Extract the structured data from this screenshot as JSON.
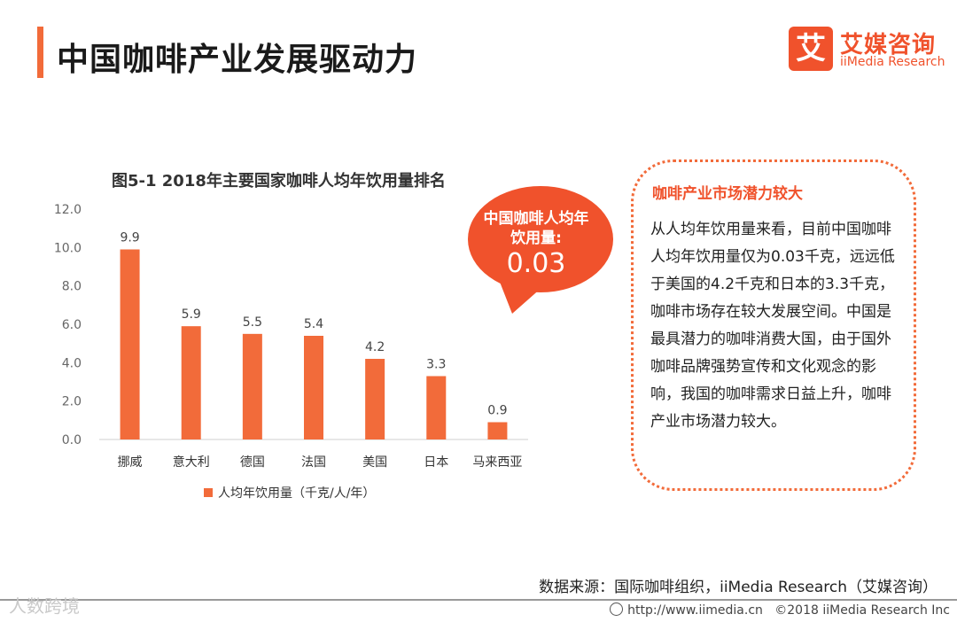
{
  "header": {
    "title": "中国咖啡产业发展驱动力"
  },
  "logo": {
    "mark": "艾",
    "name_cn": "艾媒咨询",
    "name_en": "iiMedia Research"
  },
  "colors": {
    "accent": "#f26b3a",
    "bar": "#f26b3a",
    "bubble": "#f0522c"
  },
  "chart_data": {
    "type": "bar",
    "title": "图5-1 2018年主要国家咖啡人均年饮用量排名",
    "categories": [
      "挪威",
      "意大利",
      "德国",
      "法国",
      "美国",
      "日本",
      "马来西亚"
    ],
    "series": [
      {
        "name": "人均年饮用量（千克/人/年）",
        "values": [
          9.9,
          5.9,
          5.5,
          5.4,
          4.2,
          3.3,
          0.9
        ]
      }
    ],
    "value_labels": [
      "9.9",
      "5.9",
      "5.5",
      "5.4",
      "4.2",
      "3.3",
      "0.9"
    ],
    "yticks": [
      "0.0",
      "2.0",
      "4.0",
      "6.0",
      "8.0",
      "10.0",
      "12.0"
    ],
    "ylim": [
      0,
      12
    ],
    "grid": false,
    "legend_position": "bottom"
  },
  "callout": {
    "label": "中国咖啡人均年饮用量:",
    "value": "0.03"
  },
  "insight": {
    "title": "咖啡产业市场潜力较大",
    "body": "从人均年饮用量来看，目前中国咖啡人均年饮用量仅为0.03千克，远远低于美国的4.2千克和日本的3.3千克，咖啡市场存在较大发展空间。中国是最具潜力的咖啡消费大国，由于国外咖啡品牌强势宣传和文化观念的影响，我国的咖啡需求日益上升，咖啡产业市场潜力较大。"
  },
  "source": "数据来源：国际咖啡组织，iiMedia Research（艾媒咨询）",
  "footer": {
    "url": "http://www.iimedia.cn",
    "copyright": "©2018  iiMedia Research  Inc"
  },
  "watermark": "人数跨境"
}
